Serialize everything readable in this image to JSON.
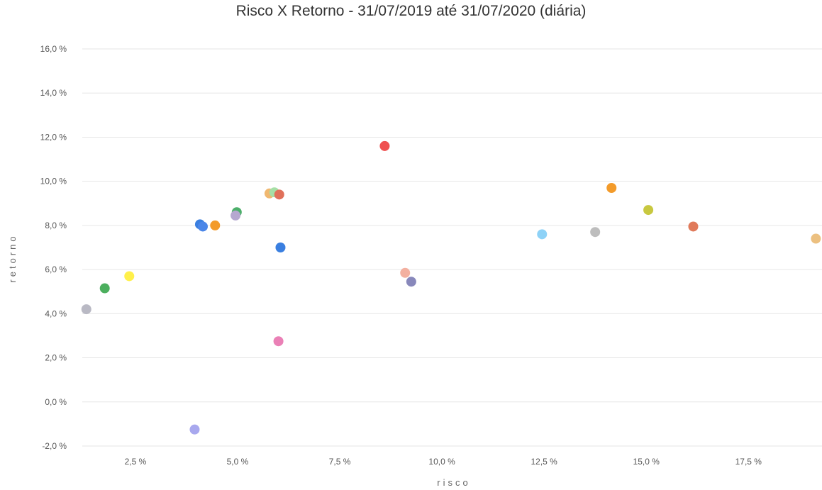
{
  "chart_data": {
    "type": "scatter",
    "title": "Risco X Retorno - 31/07/2019 até 31/07/2020 (diária)",
    "xlabel": "risco",
    "ylabel": "retorno",
    "xlim": [
      1.2,
      19.3
    ],
    "ylim": [
      -2.0,
      16.0
    ],
    "x_ticks": [
      2.5,
      5.0,
      7.5,
      10.0,
      12.5,
      15.0,
      17.5
    ],
    "x_tick_labels": [
      "2,5 %",
      "5,0 %",
      "7,5 %",
      "10,0 %",
      "12,5 %",
      "15,0 %",
      "17,5 %"
    ],
    "y_ticks": [
      -2.0,
      0.0,
      2.0,
      4.0,
      6.0,
      8.0,
      10.0,
      12.0,
      14.0,
      16.0
    ],
    "y_tick_labels": [
      "-2,0 %",
      "0,0 %",
      "2,0 %",
      "4,0 %",
      "6,0 %",
      "8,0 %",
      "10,0 %",
      "12,0 %",
      "14,0 %",
      "16,0 %"
    ],
    "grid": "horizontal",
    "points": [
      {
        "x": 1.3,
        "y": 4.2,
        "color": "#b9b9c4"
      },
      {
        "x": 1.75,
        "y": 5.15,
        "color": "#4caf5e"
      },
      {
        "x": 2.35,
        "y": 5.7,
        "color": "#fff04a"
      },
      {
        "x": 3.95,
        "y": -1.25,
        "color": "#a8a8ee"
      },
      {
        "x": 4.08,
        "y": 8.05,
        "color": "#3a7fe0"
      },
      {
        "x": 4.15,
        "y": 7.95,
        "color": "#4a86e8"
      },
      {
        "x": 4.45,
        "y": 8.0,
        "color": "#f39b2a"
      },
      {
        "x": 4.98,
        "y": 8.6,
        "color": "#4caf6a"
      },
      {
        "x": 4.95,
        "y": 8.45,
        "color": "#b6a8d0"
      },
      {
        "x": 5.78,
        "y": 9.45,
        "color": "#f0b870"
      },
      {
        "x": 5.9,
        "y": 9.5,
        "color": "#a6dfa6"
      },
      {
        "x": 6.02,
        "y": 9.4,
        "color": "#e0705a"
      },
      {
        "x": 6.0,
        "y": 2.75,
        "color": "#ea80b6"
      },
      {
        "x": 6.05,
        "y": 7.0,
        "color": "#3a7fe0"
      },
      {
        "x": 8.6,
        "y": 11.6,
        "color": "#ef5050"
      },
      {
        "x": 9.1,
        "y": 5.85,
        "color": "#f3b0a0"
      },
      {
        "x": 9.25,
        "y": 5.45,
        "color": "#8888bb"
      },
      {
        "x": 12.45,
        "y": 7.6,
        "color": "#8ed2f7"
      },
      {
        "x": 13.75,
        "y": 7.7,
        "color": "#bdbdbd"
      },
      {
        "x": 14.15,
        "y": 9.7,
        "color": "#f39b2a"
      },
      {
        "x": 15.05,
        "y": 8.7,
        "color": "#c8c840"
      },
      {
        "x": 16.15,
        "y": 7.95,
        "color": "#e07a5a"
      },
      {
        "x": 19.15,
        "y": 7.4,
        "color": "#ecc080"
      }
    ]
  }
}
